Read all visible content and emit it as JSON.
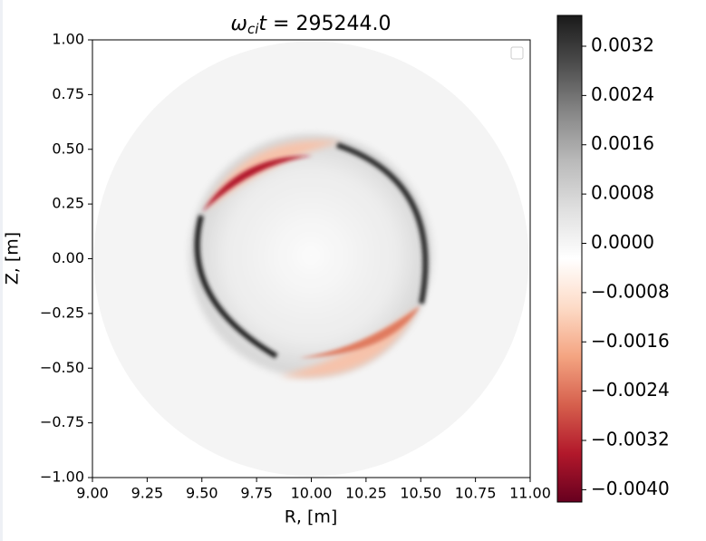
{
  "chart_data": {
    "type": "contourf",
    "title": {
      "symbol": "ω",
      "subscript": "ci",
      "variable": "t",
      "rest": " = 295244.0"
    },
    "x_label": "R, [m]",
    "y_label": "Z, [m]",
    "xlim": [
      9,
      11
    ],
    "ylim": [
      -1,
      1
    ],
    "xticks": [
      {
        "value": 9,
        "label": "9.00"
      },
      {
        "value": 9.25,
        "label": "9.25"
      },
      {
        "value": 9.5,
        "label": "9.50"
      },
      {
        "value": 9.75,
        "label": "9.75"
      },
      {
        "value": 10,
        "label": "10.00"
      },
      {
        "value": 10.25,
        "label": "10.25"
      },
      {
        "value": 10.5,
        "label": "10.50"
      },
      {
        "value": 10.75,
        "label": "10.75"
      },
      {
        "value": 11,
        "label": "11.00"
      }
    ],
    "yticks": [
      {
        "value": -1,
        "label": "−1.00"
      },
      {
        "value": -0.75,
        "label": "−0.75"
      },
      {
        "value": -0.5,
        "label": "−0.50"
      },
      {
        "value": -0.25,
        "label": "−0.25"
      },
      {
        "value": 0,
        "label": "0.00"
      },
      {
        "value": 0.25,
        "label": "0.25"
      },
      {
        "value": 0.5,
        "label": "0.50"
      },
      {
        "value": 0.75,
        "label": "0.75"
      },
      {
        "value": 1,
        "label": "1.00"
      }
    ],
    "colorbar": {
      "lim": [
        -0.0042,
        0.0037
      ],
      "ticks": [
        {
          "value": -0.004,
          "label": "−0.0040"
        },
        {
          "value": -0.0032,
          "label": "−0.0032"
        },
        {
          "value": -0.0024,
          "label": "−0.0024"
        },
        {
          "value": -0.0016,
          "label": "−0.0016"
        },
        {
          "value": -0.0008,
          "label": "−0.0008"
        },
        {
          "value": 0,
          "label": "0.0000"
        },
        0.0008,
        0.0016,
        0.0024,
        0.0032
      ],
      "colormap": [
        "#67001f",
        "#b2182b",
        "#d6604d",
        "#f4a582",
        "#fddbc7",
        "#ffffff",
        "#e0e0e0",
        "#bababa",
        "#878787",
        "#4d4d4d",
        "#1a1a1a"
      ]
    }
  }
}
